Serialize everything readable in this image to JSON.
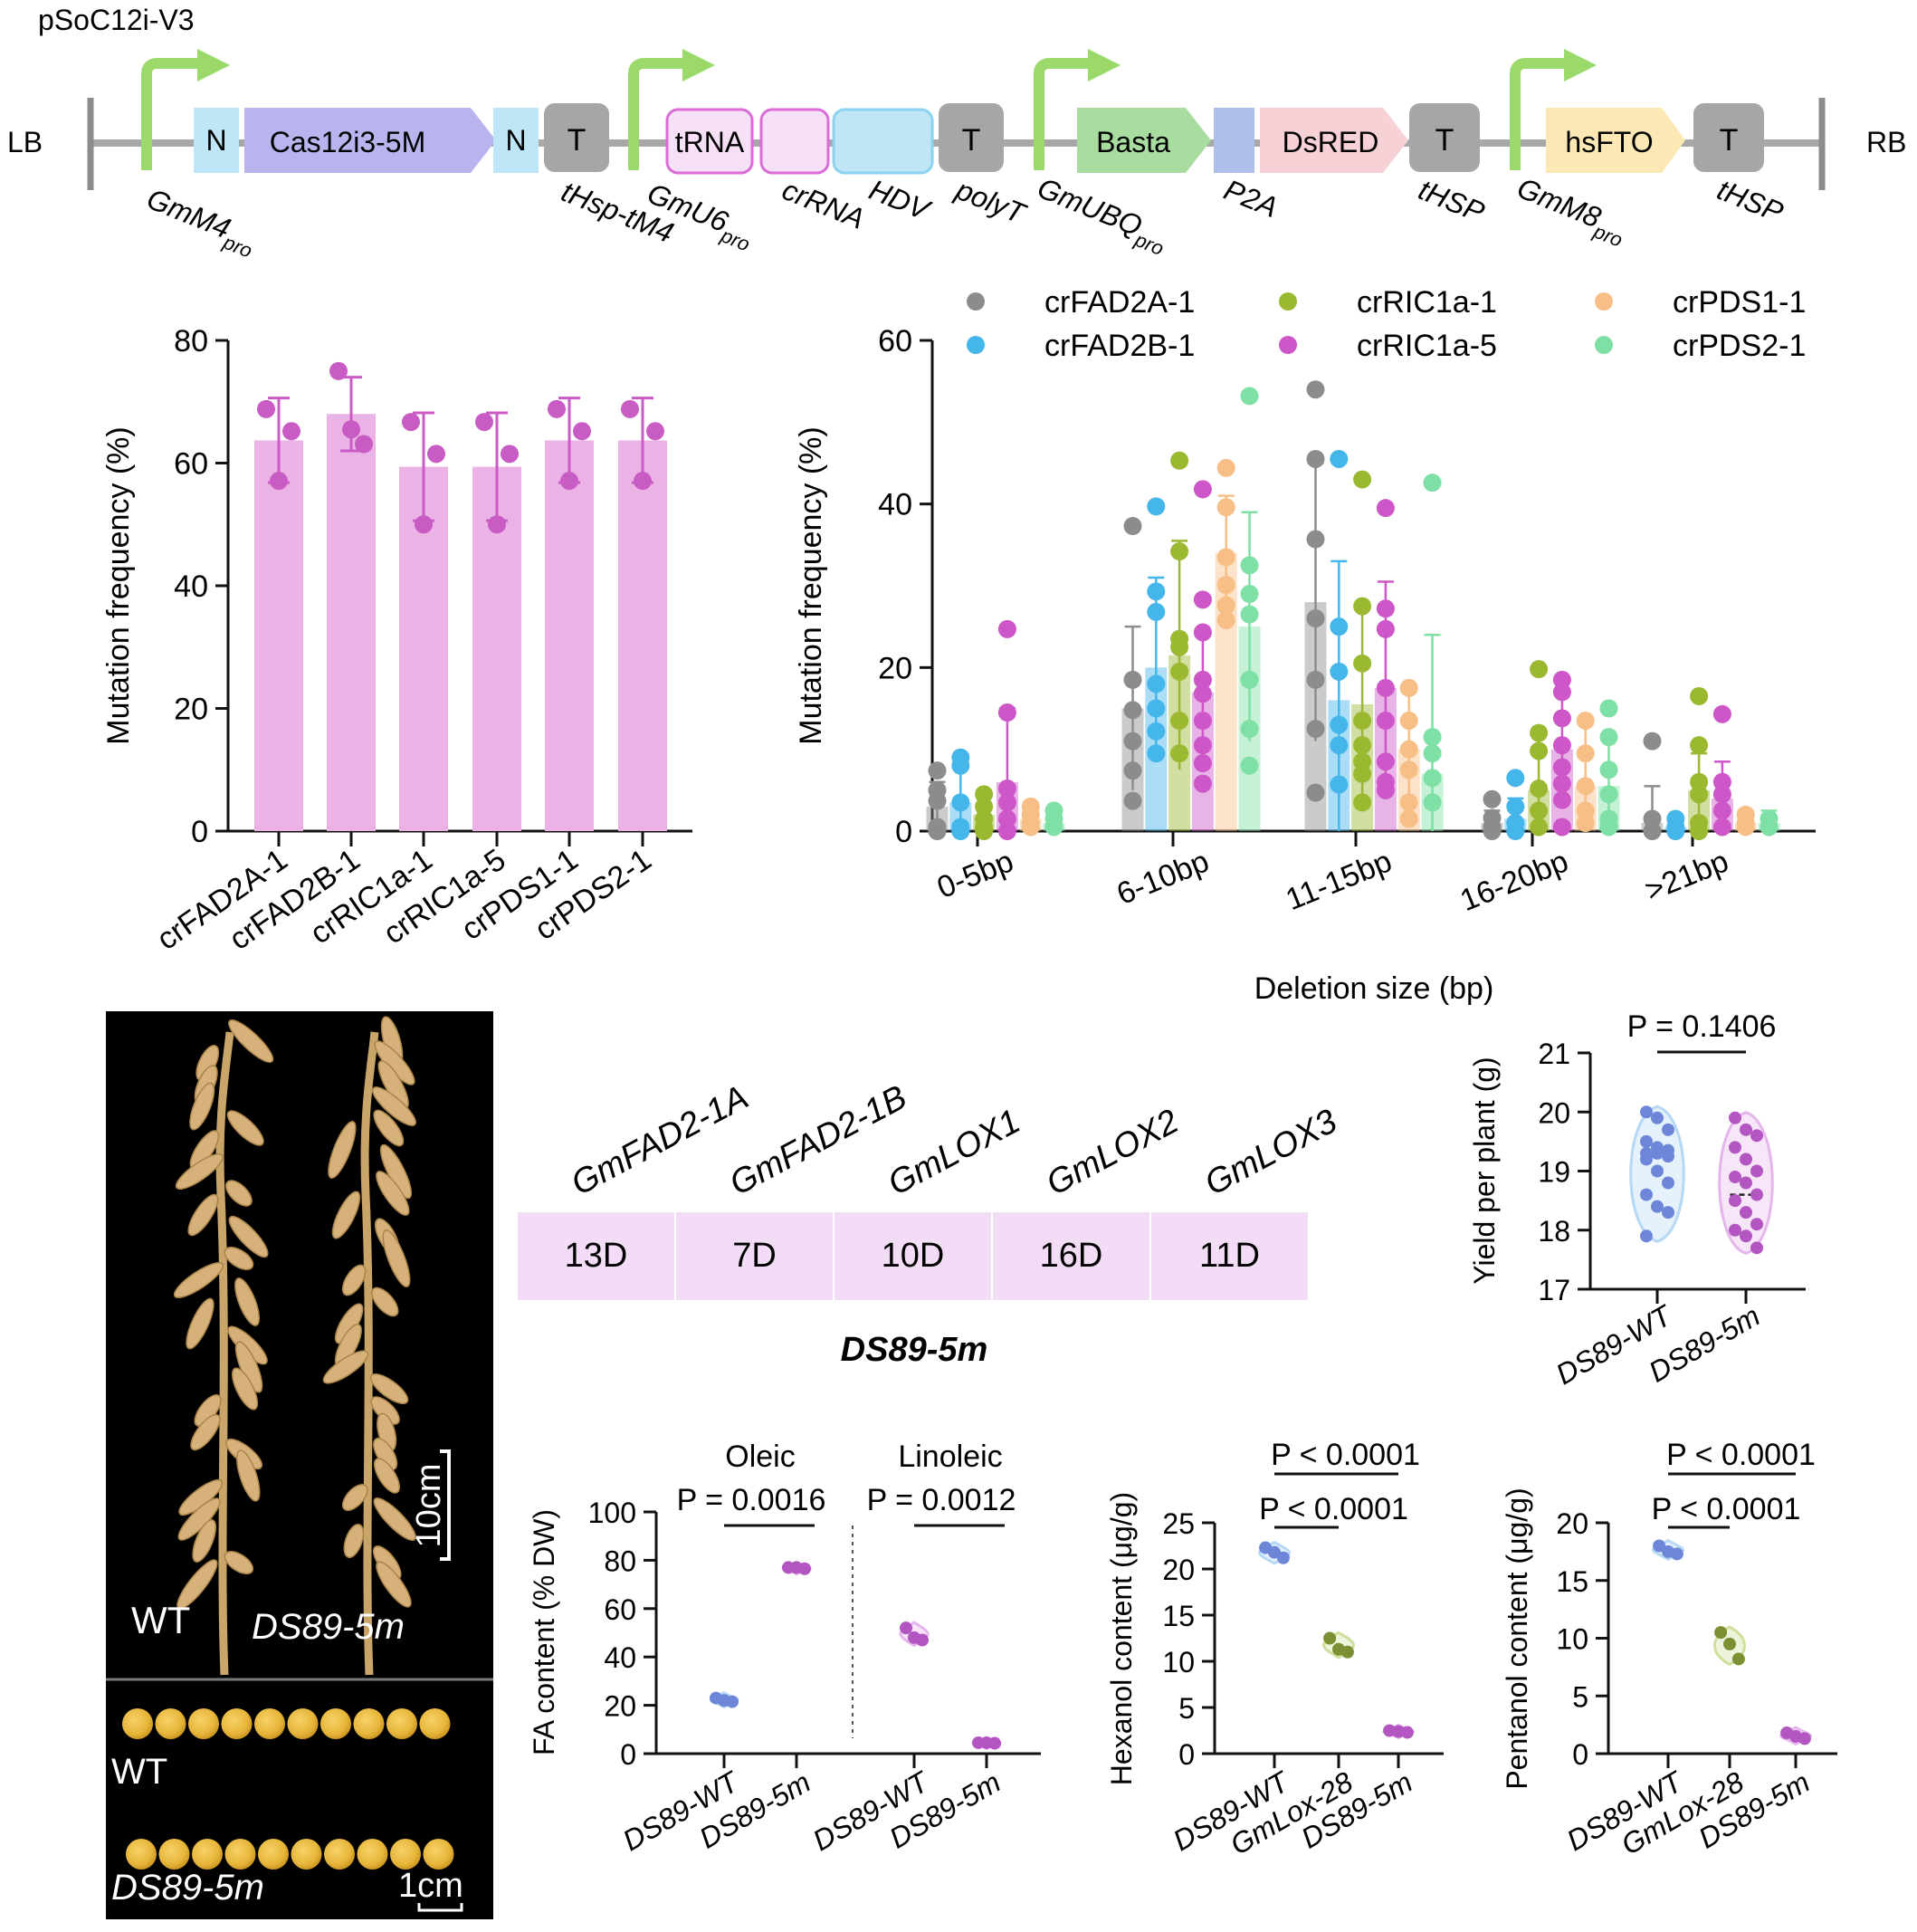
{
  "construct": {
    "name": "pSoC12i-V3",
    "left_border": "LB",
    "right_border": "RB",
    "boxes": {
      "n1": "N",
      "cas": "Cas12i3-5M",
      "n2": "N",
      "t1": "T",
      "trna": "tRNA",
      "t2": "T",
      "basta": "Basta",
      "dsred": "DsRED",
      "t3": "T",
      "hsfto": "hsFTO",
      "t4": "T"
    },
    "labels": {
      "gmm4": "GmM4",
      "gmm4_sub": "pro",
      "thsp_tm4": "tHsp-tM4",
      "gmu6": "GmU6",
      "gmu6_sub": "pro",
      "crrna": "crRNA",
      "hdv": "HDV",
      "polyt": "polyT",
      "gmubq": "GmUBQ",
      "gmubq_sub": "pro",
      "p2a": "P2A",
      "thsp1": "tHSP",
      "gmm8": "GmM8",
      "gmm8_sub": "pro",
      "thsp2": "tHSP"
    }
  },
  "colors": {
    "bar_pink": "#EBB2E6",
    "dot_pink": "#C85CC4",
    "promoter_green": "#9BD96A",
    "nls_blue": "#BFE6F7",
    "cas_purple": "#B8B5EE",
    "terminator_gray": "#A6A6A6",
    "trna_pink": "#F5E0F6",
    "hdv_blue": "#BEE6F6",
    "basta_green": "#A9DDA0",
    "p2a_blue": "#AEC0EA",
    "dsred_pink": "#F6D2D6",
    "hsfto_yellow": "#FBE8B4",
    "gene_box": "#F3DDF6",
    "wt_violin": "#B5D8F4",
    "wt_dot": "#6E86D8",
    "mut_violin": "#E5B6EC",
    "mut_dot": "#B356C2",
    "lox_violin": "#CFE09C",
    "lox_dot": "#7C8F32"
  },
  "genes": {
    "names": [
      "GmFAD2-1A",
      "GmFAD2-1B",
      "GmLOX1",
      "GmLOX2",
      "GmLOX3"
    ],
    "deletions": [
      "13D",
      "7D",
      "10D",
      "16D",
      "11D"
    ],
    "line_name": "DS89-5m"
  },
  "photo": {
    "wt": "WT",
    "mut": "DS89-5m",
    "scale_top": "10cm",
    "wt2": "WT",
    "mut2": "DS89-5m",
    "scale_bottom": "1cm"
  },
  "chart_data": [
    {
      "type": "bar",
      "categories": [
        "crFAD2A-1",
        "crFAD2B-1",
        "crRIC1a-1",
        "crRIC1a-5",
        "crPDS1-1",
        "crPDS2-1"
      ],
      "values": [
        63.7,
        68.0,
        59.4,
        59.4,
        63.7,
        63.7
      ],
      "errors": [
        6.9,
        6.0,
        8.8,
        8.8,
        6.9,
        6.9
      ],
      "points": [
        [
          68.8,
          57.1,
          65.2
        ],
        [
          75.0,
          65.5,
          63.1
        ],
        [
          66.7,
          50.0,
          61.5
        ],
        [
          66.7,
          50.0,
          61.5
        ],
        [
          68.8,
          57.1,
          65.2
        ],
        [
          68.8,
          57.1,
          65.2
        ]
      ],
      "ylabel": "Mutation frequency (%)",
      "xlabel": "",
      "ylim": [
        0,
        80
      ],
      "yticks": [
        0,
        20,
        40,
        60,
        80
      ]
    },
    {
      "type": "bar",
      "categories": [
        "0-5bp",
        "6-10bp",
        "11-15bp",
        "16-20bp",
        ">21bp"
      ],
      "xlabel": "Deletion size (bp)",
      "ylabel": "Mutation frequency (%)",
      "ylim": [
        0,
        60
      ],
      "yticks": [
        0,
        20,
        40,
        60
      ],
      "legend_position": "top",
      "series": [
        {
          "name": "crFAD2A-1",
          "color": "#8C8C8C",
          "means": [
            3,
            15,
            28,
            1,
            1
          ],
          "sd": [
            3,
            10,
            17,
            1.5,
            4.5
          ],
          "points": [
            [
              7.4,
              5,
              3.7,
              0.5,
              0
            ],
            [
              37.3,
              18.5,
              14.8,
              11,
              7.4,
              3.7
            ],
            [
              54,
              45.5,
              35.7,
              26,
              18.5,
              12.5,
              4.7
            ],
            [
              3.9,
              1.6,
              0.5,
              0
            ],
            [
              11,
              1.5,
              0
            ]
          ]
        },
        {
          "name": "crFAD2B-1",
          "color": "#45B6EA",
          "means": [
            3.5,
            20,
            16,
            1.5,
            0.5
          ],
          "sd": [
            5.5,
            11,
            17,
            2.5,
            1
          ],
          "points": [
            [
              9,
              8,
              3.5,
              0.5,
              0
            ],
            [
              39.7,
              29.3,
              26.8,
              18,
              15,
              12.2,
              9.5
            ],
            [
              45.5,
              25,
              19.5,
              13,
              10.5,
              5.7
            ],
            [
              6.5,
              3,
              1,
              0
            ],
            [
              1.5,
              0.5,
              0
            ]
          ]
        },
        {
          "name": "crRIC1a-1",
          "color": "#9AB830",
          "means": [
            2,
            21.5,
            15.5,
            5,
            5
          ],
          "sd": [
            2.5,
            14,
            12,
            5,
            4.5
          ],
          "points": [
            [
              4.5,
              3,
              1.5,
              0.5,
              0
            ],
            [
              45.3,
              34.2,
              23.5,
              22.5,
              19.5,
              13.5,
              9.5
            ],
            [
              43,
              27.5,
              20.5,
              13.5,
              10.5,
              8.5,
              7,
              3.5
            ],
            [
              19.8,
              12,
              9.8,
              5.2,
              2.5,
              0.5
            ],
            [
              16.5,
              10.5,
              6,
              4.5,
              1,
              0
            ]
          ]
        },
        {
          "name": "crRIC1a-5",
          "color": "#CD56C8",
          "means": [
            6,
            17,
            17.5,
            10,
            4
          ],
          "sd": [
            9,
            7,
            13,
            7,
            4.5
          ],
          "points": [
            [
              24.7,
              14.5,
              5.2,
              3.5,
              1.5,
              0
            ],
            [
              41.8,
              28.3,
              24.3,
              18.5,
              16.8,
              13.5,
              10.5,
              8.3,
              5.8
            ],
            [
              39.5,
              27.2,
              24.7,
              17.5,
              13.5,
              8.5,
              6,
              5
            ],
            [
              18.5,
              17,
              13.8,
              10.5,
              7.8,
              5.8,
              3.8,
              0.5
            ],
            [
              14.3,
              6,
              4.5,
              2.5,
              0.5
            ]
          ]
        },
        {
          "name": "crPDS1-1",
          "color": "#F7BE86",
          "means": [
            1.5,
            34,
            10,
            5.5,
            1
          ],
          "sd": [
            2,
            7,
            7,
            8,
            1.5
          ],
          "points": [
            [
              3,
              2,
              1,
              0.5
            ],
            [
              44.4,
              39.6,
              33.5,
              30.1,
              27.6,
              25.8
            ],
            [
              17.5,
              13.5,
              10,
              7.5,
              3.5,
              1.5
            ],
            [
              13.5,
              9.5,
              5.5,
              2.5,
              1
            ],
            [
              2,
              1,
              0.5
            ]
          ]
        },
        {
          "name": "crPDS2-1",
          "color": "#7FE0A6",
          "means": [
            1,
            25,
            7,
            5.5,
            1
          ],
          "sd": [
            1.5,
            14,
            17,
            6,
            1.5
          ],
          "points": [
            [
              2.5,
              1.5,
              0.5
            ],
            [
              53.2,
              32.5,
              29,
              26.5,
              18.5,
              12.5,
              8
            ],
            [
              42.6,
              11.5,
              9.5,
              6.5,
              3.5
            ],
            [
              15,
              11.5,
              7.5,
              4.5,
              1.5,
              0.5
            ],
            [
              1.5,
              0.5
            ]
          ]
        }
      ]
    },
    {
      "type": "scatter",
      "ylabel": "Yield per plant (g)",
      "categories": [
        "DS89-WT",
        "DS89-5m"
      ],
      "ylim": [
        17,
        21
      ],
      "yticks": [
        17,
        18,
        19,
        20,
        21
      ],
      "annotation": "P = 0.1406",
      "groups": [
        {
          "median": 19.3,
          "points": [
            20,
            19.9,
            19.7,
            19.5,
            19.4,
            19.35,
            19.3,
            19.3,
            19.25,
            19.2,
            19,
            18.8,
            18.6,
            18.4,
            18.3,
            17.9
          ]
        },
        {
          "median": 18.6,
          "points": [
            19.9,
            19.7,
            19.6,
            19.4,
            19.2,
            19,
            18.9,
            18.8,
            18.6,
            18.5,
            18.3,
            18.1,
            18,
            17.9,
            17.7
          ]
        }
      ]
    },
    {
      "type": "scatter",
      "ylabel": "FA content (% DW)",
      "ylim": [
        0,
        100
      ],
      "yticks": [
        0,
        20,
        40,
        60,
        80,
        100
      ],
      "panels": [
        {
          "title": "Oleic",
          "annotation": "P = 0.0016",
          "categories": [
            "DS89-WT",
            "DS89-5m"
          ],
          "values": [
            [
              23,
              22,
              21.5
            ],
            [
              77,
              77,
              76.5
            ]
          ]
        },
        {
          "title": "Linoleic",
          "annotation": "P = 0.0012",
          "categories": [
            "DS89-WT",
            "DS89-5m"
          ],
          "values": [
            [
              52,
              48,
              47
            ],
            [
              4.5,
              4.5,
              4.3
            ]
          ]
        }
      ]
    },
    {
      "type": "scatter",
      "ylabel": "Hexanol content (μg/g)",
      "ylim": [
        0,
        25
      ],
      "yticks": [
        0,
        5,
        10,
        15,
        20,
        25
      ],
      "categories": [
        "DS89-WT",
        "GmLox-28",
        "DS89-5m"
      ],
      "annotations": [
        "P < 0.0001",
        "P < 0.0001"
      ],
      "values": [
        [
          22.3,
          21.8,
          21.2
        ],
        [
          12.5,
          11.3,
          11
        ],
        [
          2.5,
          2.4,
          2.3
        ]
      ]
    },
    {
      "type": "scatter",
      "ylabel": "Pentanol content (μg/g)",
      "ylim": [
        0,
        20
      ],
      "yticks": [
        0,
        5,
        10,
        15,
        20
      ],
      "categories": [
        "DS89-WT",
        "GmLox-28",
        "DS89-5m"
      ],
      "annotations": [
        "P < 0.0001",
        "P < 0.0001"
      ],
      "values": [
        [
          18,
          17.5,
          17.3
        ],
        [
          10.5,
          9.5,
          8.2
        ],
        [
          1.8,
          1.5,
          1.3
        ]
      ]
    }
  ]
}
